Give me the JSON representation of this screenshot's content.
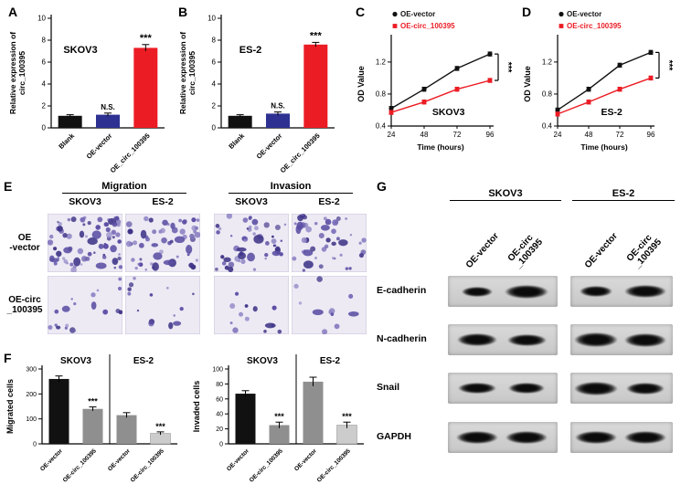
{
  "colors": {
    "black": "#111111",
    "blue": "#2e3192",
    "red": "#ec1c24",
    "gray": "#8f8f8f",
    "lightgray": "#cccccc"
  },
  "chart_data": [
    {
      "id": "A",
      "type": "bar",
      "panel_label": "A",
      "title": "SKOV3",
      "ylabel_lines": [
        "Relative  expression of",
        "circ_100395"
      ],
      "categories": [
        "Blank",
        "OE-vector",
        "OE_circ_100395"
      ],
      "values": [
        1.1,
        1.2,
        7.3
      ],
      "errors": [
        0.1,
        0.15,
        0.3
      ],
      "bar_colors": [
        "black",
        "blue",
        "red"
      ],
      "annotations": [
        {
          "index": 1,
          "text": "N.S."
        },
        {
          "index": 2,
          "text": "***"
        }
      ],
      "ylim": [
        0,
        10
      ],
      "yticks": [
        0,
        2,
        4,
        6,
        8,
        10
      ]
    },
    {
      "id": "B",
      "type": "bar",
      "panel_label": "B",
      "title": "ES-2",
      "ylabel_lines": [
        "Relative  expression of",
        "circ_100395"
      ],
      "categories": [
        "Blank",
        "OE-vector",
        "OE_circ_100395"
      ],
      "values": [
        1.1,
        1.3,
        7.6
      ],
      "errors": [
        0.1,
        0.15,
        0.2
      ],
      "bar_colors": [
        "black",
        "blue",
        "red"
      ],
      "annotations": [
        {
          "index": 1,
          "text": "N.S."
        },
        {
          "index": 2,
          "text": "***"
        }
      ],
      "ylim": [
        0,
        10
      ],
      "yticks": [
        0,
        2,
        4,
        6,
        8,
        10
      ]
    },
    {
      "id": "C",
      "type": "line",
      "panel_label": "C",
      "title": "SKOV3",
      "xlabel": "Time (hours)",
      "ylabel": "OD Value",
      "x": [
        24,
        48,
        72,
        96
      ],
      "series": [
        {
          "name": "OE-vector",
          "color": "black",
          "marker": "circle",
          "values": [
            0.62,
            0.86,
            1.12,
            1.3
          ]
        },
        {
          "name": "OE-circ_100395",
          "color": "red",
          "marker": "square",
          "values": [
            0.57,
            0.7,
            0.86,
            0.97
          ]
        }
      ],
      "ylim": [
        0.4,
        1.45
      ],
      "yticks": [
        0.4,
        0.8,
        1.2
      ],
      "sig": "***"
    },
    {
      "id": "D",
      "type": "line",
      "panel_label": "D",
      "title": "ES-2",
      "xlabel": "Time (hours)",
      "ylabel": "OD Value",
      "x": [
        24,
        48,
        72,
        96
      ],
      "series": [
        {
          "name": "OE-vector",
          "color": "black",
          "marker": "circle",
          "values": [
            0.6,
            0.86,
            1.16,
            1.32
          ]
        },
        {
          "name": "OE-circ_100395",
          "color": "red",
          "marker": "square",
          "values": [
            0.55,
            0.7,
            0.86,
            1.0
          ]
        }
      ],
      "ylim": [
        0.4,
        1.45
      ],
      "yticks": [
        0.4,
        0.8,
        1.2
      ],
      "sig": "***"
    },
    {
      "id": "F1",
      "type": "groupbar",
      "ylabel": "Migrated cells",
      "ylim": [
        0,
        300
      ],
      "yticks": [
        0,
        100,
        200,
        300
      ],
      "groups": [
        {
          "title": "SKOV3",
          "bars": [
            {
              "label": "OE-vector",
              "value": 260,
              "err": 12,
              "color": "black"
            },
            {
              "label": "OE-circ_100395",
              "value": 140,
              "err": 8,
              "color": "gray",
              "sig": "***"
            }
          ]
        },
        {
          "title": "ES-2",
          "bars": [
            {
              "label": "OE-vector",
              "value": 115,
              "err": 10,
              "color": "gray"
            },
            {
              "label": "OE-circ_100395",
              "value": 42,
              "err": 6,
              "color": "lightgray",
              "sig": "***"
            }
          ]
        }
      ]
    },
    {
      "id": "F2",
      "type": "groupbar",
      "ylabel": "Invaded cells",
      "ylim": [
        0,
        100
      ],
      "yticks": [
        0,
        20,
        40,
        60,
        80,
        100
      ],
      "groups": [
        {
          "title": "SKOV3",
          "bars": [
            {
              "label": "OE-vector",
              "value": 67,
              "err": 4,
              "color": "black"
            },
            {
              "label": "OE-circ_100395",
              "value": 25,
              "err": 4,
              "color": "gray",
              "sig": "***"
            }
          ]
        },
        {
          "title": "ES-2",
          "bars": [
            {
              "label": "OE-vector",
              "value": 83,
              "err": 6,
              "color": "gray"
            },
            {
              "label": "OE-circ_100395",
              "value": 25,
              "err": 4,
              "color": "lightgray",
              "sig": "***"
            }
          ]
        }
      ]
    }
  ],
  "panelE": {
    "label": "E",
    "group_headers": [
      "Migration",
      "Invasion"
    ],
    "col_headers": [
      "SKOV3",
      "ES-2",
      "SKOV3",
      "ES-2"
    ],
    "row_labels": [
      [
        "OE",
        "-vector"
      ],
      [
        "OE-circ",
        "_100395"
      ]
    ],
    "densities": [
      [
        60,
        48,
        42,
        40
      ],
      [
        16,
        12,
        11,
        9
      ]
    ]
  },
  "panelF": {
    "label": "F"
  },
  "panelG": {
    "label": "G",
    "group_headers": [
      "SKOV3",
      "ES-2"
    ],
    "col_labels": [
      [
        "OE-vector"
      ],
      [
        "OE-circ",
        "_100395"
      ],
      [
        "OE-vector"
      ],
      [
        "OE-circ",
        "_100395"
      ]
    ],
    "row_labels": [
      "E-cadherin",
      "N-cadherin",
      "Snail",
      "GAPDH"
    ],
    "bands": [
      [
        [
          [
            34,
            11
          ],
          [
            48,
            15
          ]
        ],
        [
          [
            36,
            12
          ],
          [
            46,
            14
          ]
        ]
      ],
      [
        [
          [
            44,
            14
          ],
          [
            43,
            13
          ]
        ],
        [
          [
            48,
            16
          ],
          [
            46,
            15
          ]
        ]
      ],
      [
        [
          [
            42,
            12
          ],
          [
            40,
            12
          ]
        ],
        [
          [
            48,
            15
          ],
          [
            42,
            13
          ]
        ]
      ],
      [
        [
          [
            46,
            14
          ],
          [
            46,
            14
          ]
        ],
        [
          [
            46,
            14
          ],
          [
            46,
            14
          ]
        ]
      ]
    ]
  }
}
